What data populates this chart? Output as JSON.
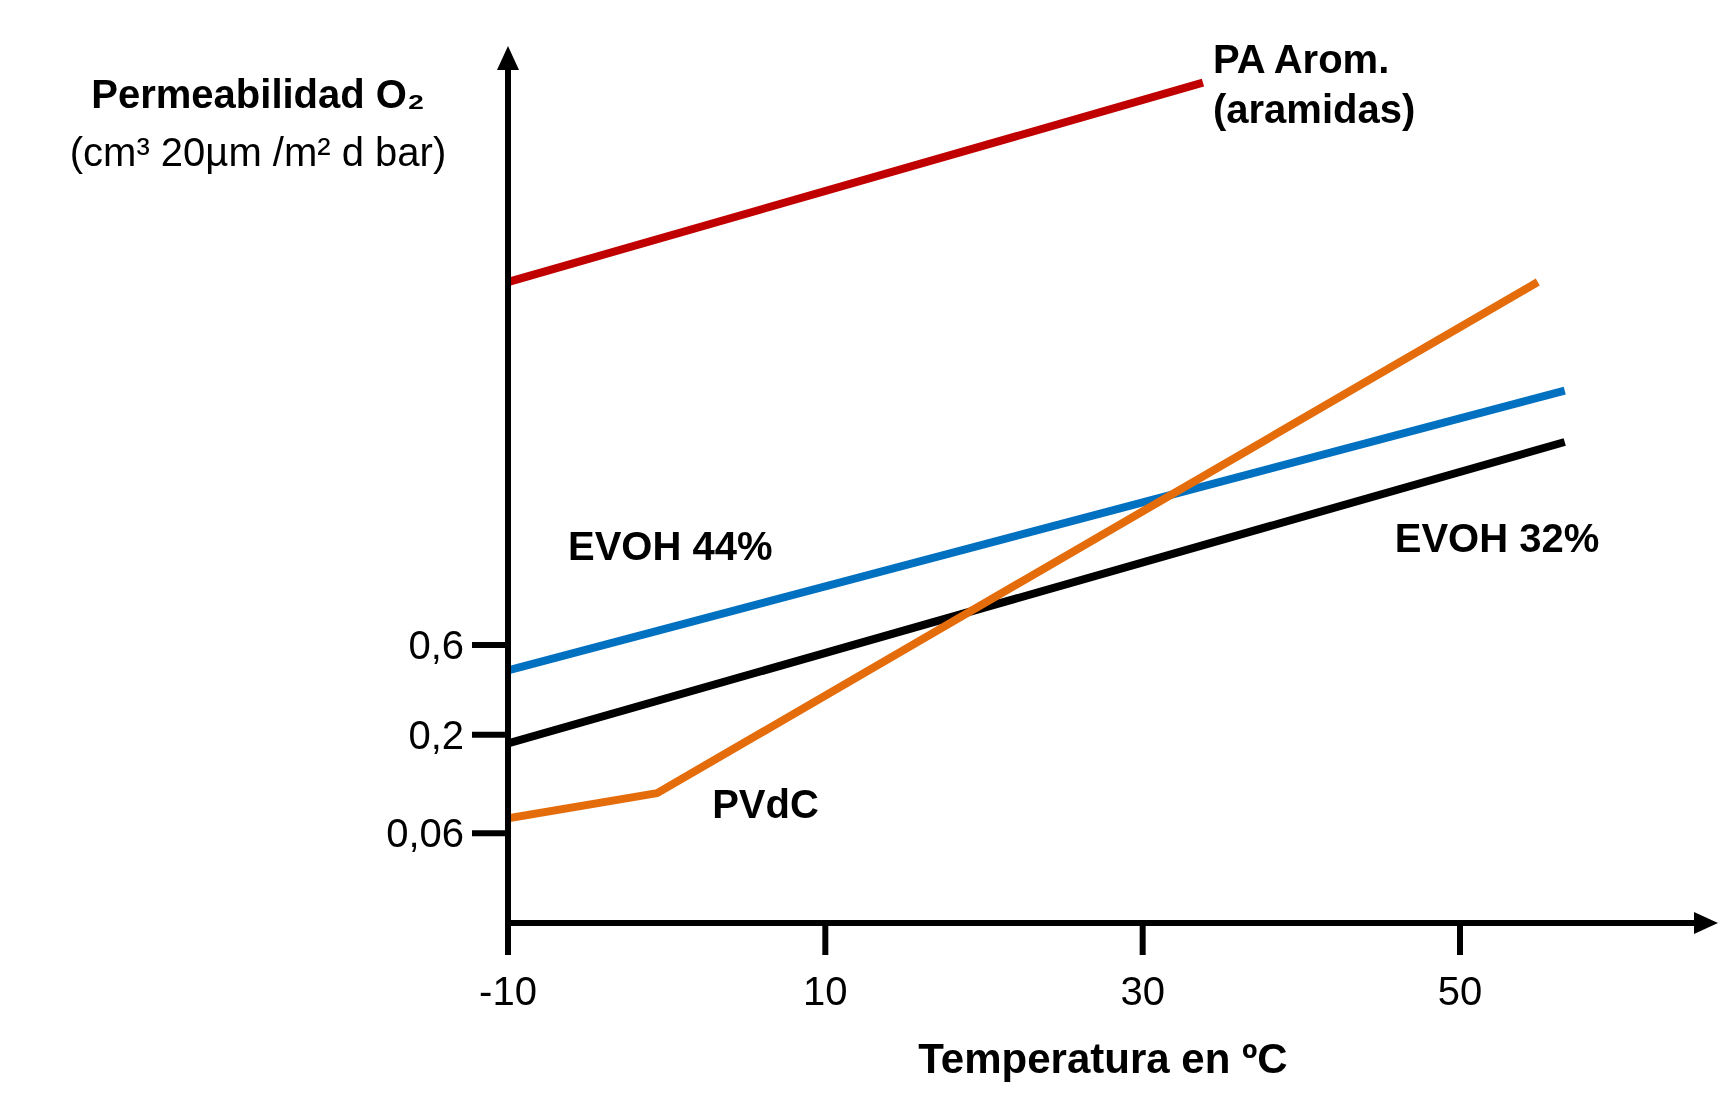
{
  "chart_data": {
    "type": "line",
    "xlabel": "Temperatura en ºC",
    "ylabel": "Permeabilidad O₂\n(cm³ 20µm /m² d bar)",
    "log": "y",
    "xlim": [
      -10,
      65
    ],
    "xticks": [
      -10,
      10,
      30,
      50
    ],
    "ylim": [
      0.02,
      700
    ],
    "yticks": [
      {
        "value": 0.06,
        "label": "0,06"
      },
      {
        "value": 0.2,
        "label": "0,2"
      },
      {
        "value": 0.6,
        "label": "0,6"
      }
    ],
    "grid": false,
    "marker": "none",
    "line_style": "solid",
    "tick_labels": "xy",
    "series": [
      {
        "name": "PA Arom.\n(aramidas)",
        "color": "#c00000",
        "x": [
          -10,
          33.8
        ],
        "values": [
          51,
          585
        ]
      },
      {
        "name": "EVOH 44%",
        "color": "#0070c0",
        "x": [
          -10,
          56.6
        ],
        "values": [
          0.44,
          13.5
        ]
      },
      {
        "name": "EVOH 32%",
        "color": "#000000",
        "x": [
          -10,
          56.6
        ],
        "values": [
          0.18,
          7.2
        ]
      },
      {
        "name": "PVdC",
        "color": "#e46c0a",
        "x": [
          -10,
          -0.6,
          54.9
        ],
        "values": [
          0.072,
          0.098,
          51
        ]
      }
    ]
  }
}
